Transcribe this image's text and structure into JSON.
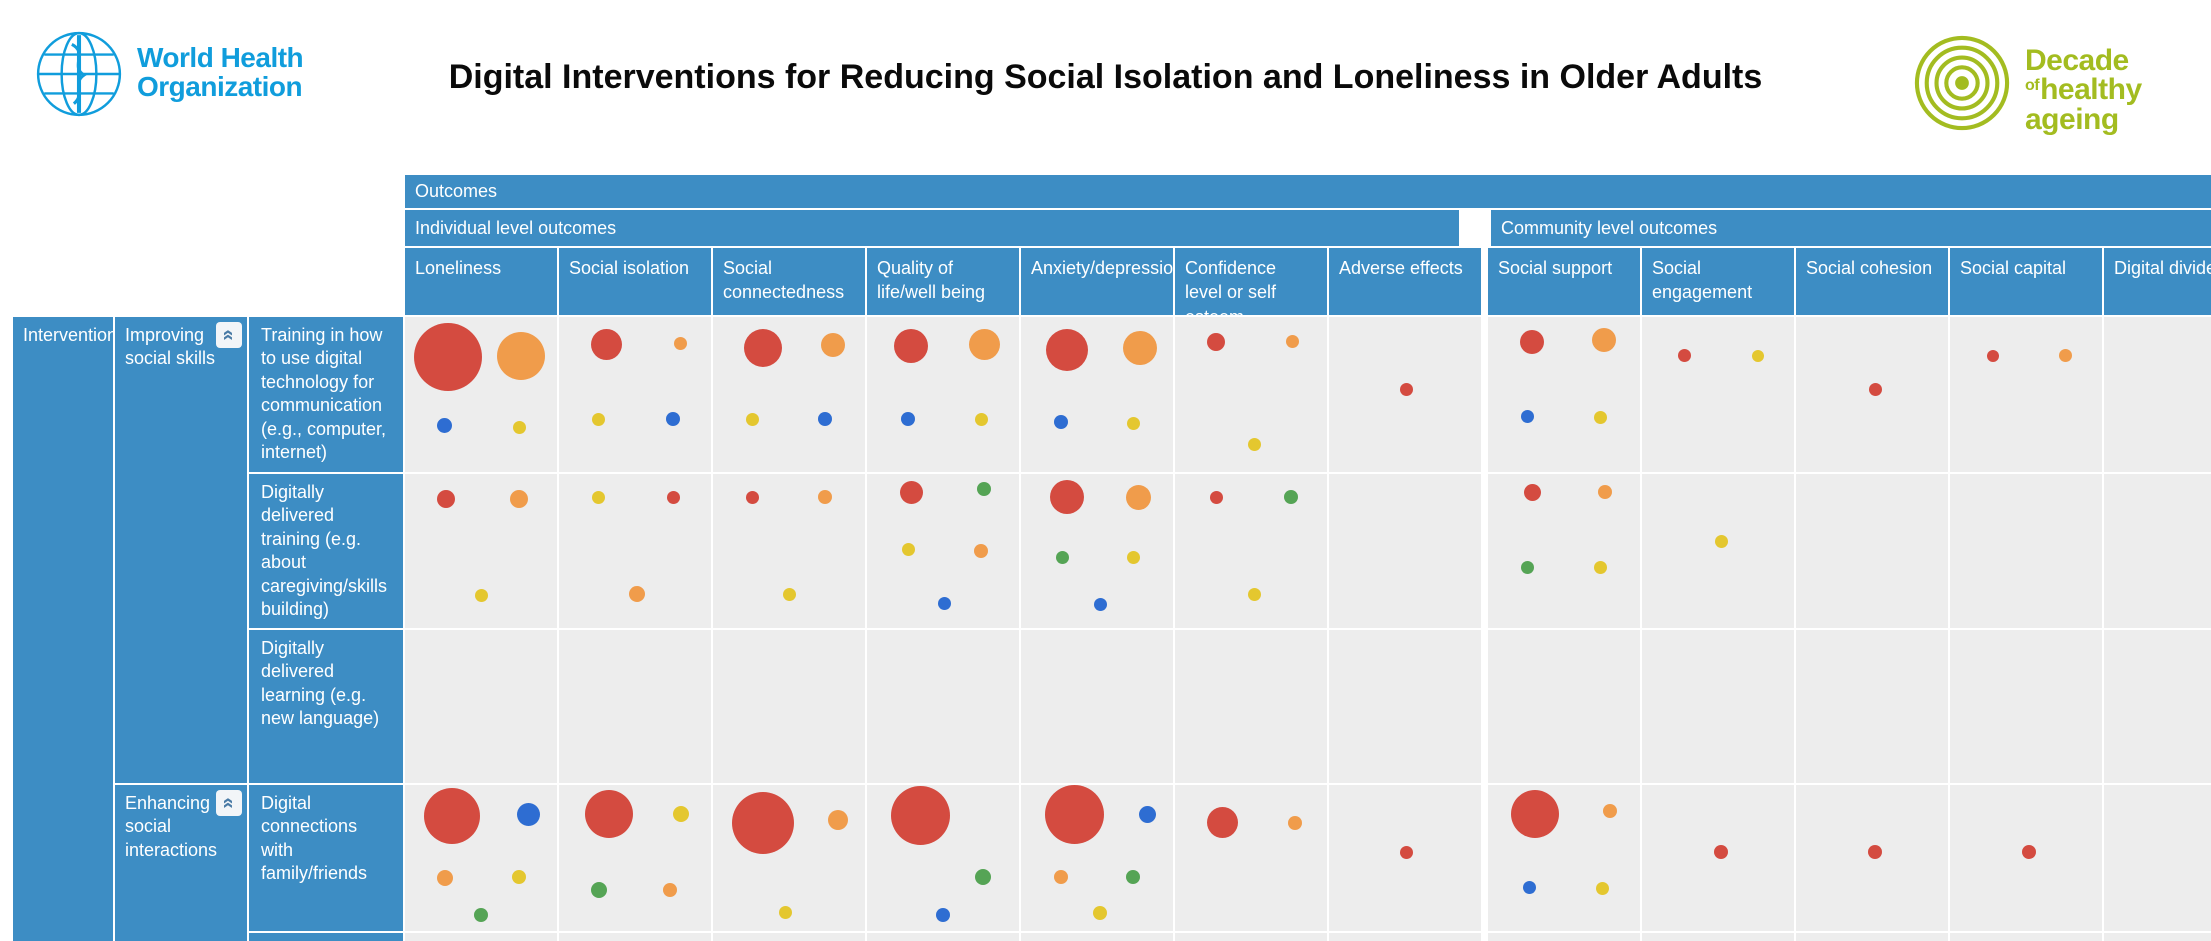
{
  "colors": {
    "header_blue": "#3d8dc4",
    "cell_bg": "#ededed",
    "page_bg": "#ffffff",
    "title_text": "#0a0a0a",
    "who_blue": "#109ddc",
    "decade_green": "#a3bc20",
    "bubble": {
      "red": "#d44b40",
      "orange": "#f09c4b",
      "yellow": "#e4c72f",
      "blue": "#2e6dd2",
      "green": "#55a455"
    }
  },
  "header": {
    "title": "Digital Interventions for Reducing Social Isolation and Loneliness in Older Adults",
    "who_logo": {
      "line1": "World Health",
      "line2": "Organization"
    },
    "decade_logo": {
      "word1": "Decade",
      "word2": "of",
      "word3": "healthy",
      "word4": "ageing"
    }
  },
  "matrix": {
    "outcomes_label": "Outcomes",
    "interventions_label": "Interventions",
    "collapse_columns_glyph": "«",
    "collapse_category_glyph": "«",
    "groups": [
      {
        "label": "Individual level outcomes",
        "columns": 7
      },
      {
        "label": "Community level outcomes",
        "columns": 5
      }
    ],
    "categories": [
      {
        "label": "Improving social skills"
      },
      {
        "label": "Enhancing social interactions"
      }
    ]
  },
  "chart_data": {
    "type": "bubble_matrix",
    "title": "Digital Interventions for Reducing Social Isolation and Loneliness in Older Adults",
    "row_axis_label": "Interventions",
    "column_axis_label": "Outcomes",
    "column_groups": [
      {
        "label": "Individual level outcomes",
        "columns": [
          "Loneliness",
          "Social isolation",
          "Social connectedness",
          "Quality of life/well being",
          "Anxiety/depression",
          "Confidence level or self esteem",
          "Adverse effects"
        ]
      },
      {
        "label": "Community level outcomes",
        "columns": [
          "Social support",
          "Social engagement",
          "Social cohesion",
          "Social capital",
          "Digital divide"
        ]
      }
    ],
    "columns": [
      "Loneliness",
      "Social isolation",
      "Social connectedness",
      "Quality of life/well being",
      "Anxiety/depression",
      "Confidence level or self esteem",
      "Adverse effects",
      "Social support",
      "Social engagement",
      "Social cohesion",
      "Social capital",
      "Digital divide"
    ],
    "bubble_format": "[color, diameter_px, center_x_pct, center_y_pct]",
    "rows": [
      {
        "label": "Training in how to use digital technology for communication (e.g., computer, internet)",
        "category": "Improving social skills",
        "cells": [
          [
            [
              "red",
              68,
              28,
              26
            ],
            [
              "orange",
              48,
              76,
              25
            ],
            [
              "blue",
              15,
              26,
              70
            ],
            [
              "yellow",
              13,
              75,
              71
            ]
          ],
          [
            [
              "red",
              31,
              31,
              18
            ],
            [
              "orange",
              13,
              80,
              17
            ],
            [
              "yellow",
              13,
              26,
              66
            ],
            [
              "blue",
              14,
              75,
              66
            ]
          ],
          [
            [
              "red",
              38,
              33,
              20
            ],
            [
              "orange",
              24,
              79,
              18
            ],
            [
              "yellow",
              13,
              26,
              66
            ],
            [
              "blue",
              14,
              74,
              66
            ]
          ],
          [
            [
              "red",
              34,
              29,
              19
            ],
            [
              "orange",
              31,
              77,
              18
            ],
            [
              "blue",
              14,
              27,
              66
            ],
            [
              "yellow",
              13,
              75,
              66
            ]
          ],
          [
            [
              "red",
              42,
              30,
              21
            ],
            [
              "orange",
              34,
              78,
              20
            ],
            [
              "blue",
              14,
              26,
              68
            ],
            [
              "yellow",
              13,
              74,
              69
            ]
          ],
          [
            [
              "red",
              18,
              27,
              16
            ],
            [
              "orange",
              13,
              77,
              16
            ],
            [
              "yellow",
              13,
              52,
              82
            ]
          ],
          [
            [
              "red",
              13,
              51,
              47
            ]
          ],
          [
            [
              "red",
              24,
              29,
              16
            ],
            [
              "orange",
              24,
              76,
              15
            ],
            [
              "blue",
              13,
              26,
              64
            ],
            [
              "yellow",
              13,
              74,
              65
            ]
          ],
          [
            [
              "red",
              13,
              28,
              25
            ],
            [
              "yellow",
              12,
              76,
              25
            ]
          ],
          [
            [
              "red",
              13,
              52,
              47
            ]
          ],
          [
            [
              "red",
              12,
              28,
              25
            ],
            [
              "orange",
              13,
              76,
              25
            ]
          ],
          []
        ]
      },
      {
        "label": "Digitally delivered training (e.g. about caregiving/skills building)",
        "category": "Improving social skills",
        "cells": [
          [
            [
              "red",
              18,
              27,
              16
            ],
            [
              "orange",
              18,
              75,
              16
            ],
            [
              "yellow",
              13,
              50,
              79
            ]
          ],
          [
            [
              "yellow",
              13,
              26,
              15
            ],
            [
              "red",
              13,
              75,
              15
            ],
            [
              "orange",
              16,
              51,
              78
            ]
          ],
          [
            [
              "red",
              13,
              26,
              15
            ],
            [
              "orange",
              14,
              74,
              15
            ],
            [
              "yellow",
              13,
              50,
              78
            ]
          ],
          [
            [
              "red",
              23,
              29,
              12
            ],
            [
              "green",
              14,
              77,
              10
            ],
            [
              "yellow",
              13,
              27,
              49
            ],
            [
              "orange",
              14,
              75,
              50
            ],
            [
              "blue",
              13,
              51,
              84
            ]
          ],
          [
            [
              "red",
              34,
              30,
              15
            ],
            [
              "orange",
              25,
              77,
              15
            ],
            [
              "green",
              13,
              27,
              54
            ],
            [
              "yellow",
              13,
              74,
              54
            ],
            [
              "blue",
              13,
              52,
              85
            ]
          ],
          [
            [
              "red",
              13,
              27,
              15
            ],
            [
              "green",
              14,
              76,
              15
            ],
            [
              "yellow",
              13,
              52,
              78
            ]
          ],
          [],
          [
            [
              "red",
              17,
              29,
              12
            ],
            [
              "orange",
              14,
              77,
              12
            ],
            [
              "green",
              13,
              26,
              61
            ],
            [
              "yellow",
              13,
              74,
              61
            ]
          ],
          [
            [
              "yellow",
              13,
              52,
              44
            ]
          ],
          [],
          [],
          []
        ]
      },
      {
        "label": "Digitally delivered learning (e.g. new language)",
        "category": "Improving social skills",
        "cells": [
          [],
          [],
          [],
          [],
          [],
          [],
          [],
          [],
          [],
          [],
          [],
          []
        ]
      },
      {
        "label": "Digital connections with family/friends",
        "category": "Enhancing social interactions",
        "cells": [
          [
            [
              "red",
              56,
              31,
              21
            ],
            [
              "blue",
              23,
              81,
              20
            ],
            [
              "orange",
              16,
              26,
              64
            ],
            [
              "yellow",
              14,
              75,
              63
            ],
            [
              "green",
              14,
              50,
              89
            ]
          ],
          [
            [
              "red",
              48,
              33,
              20
            ],
            [
              "yellow",
              16,
              80,
              20
            ],
            [
              "green",
              16,
              26,
              72
            ],
            [
              "orange",
              14,
              73,
              72
            ]
          ],
          [
            [
              "red",
              62,
              33,
              26
            ],
            [
              "orange",
              20,
              82,
              24
            ],
            [
              "yellow",
              13,
              48,
              87
            ]
          ],
          [
            [
              "red",
              59,
              35,
              21
            ],
            [
              "green",
              16,
              76,
              63
            ],
            [
              "blue",
              14,
              50,
              89
            ]
          ],
          [
            [
              "red",
              59,
              35,
              20
            ],
            [
              "blue",
              17,
              83,
              20
            ],
            [
              "orange",
              14,
              26,
              63
            ],
            [
              "green",
              14,
              74,
              63
            ],
            [
              "yellow",
              14,
              52,
              88
            ]
          ],
          [
            [
              "red",
              31,
              31,
              26
            ],
            [
              "orange",
              14,
              79,
              26
            ]
          ],
          [
            [
              "red",
              13,
              51,
              46
            ]
          ],
          [
            [
              "red",
              48,
              31,
              20
            ],
            [
              "orange",
              14,
              80,
              18
            ],
            [
              "blue",
              13,
              27,
              70
            ],
            [
              "yellow",
              13,
              75,
              71
            ]
          ],
          [
            [
              "red",
              14,
              52,
              46
            ]
          ],
          [
            [
              "red",
              14,
              52,
              46
            ]
          ],
          [
            [
              "red",
              14,
              52,
              46
            ]
          ],
          []
        ]
      },
      {
        "label": "",
        "category": "Enhancing social interactions",
        "cells": [
          [],
          [],
          [],
          [],
          [],
          [],
          [],
          [],
          [],
          [],
          [],
          []
        ]
      }
    ]
  }
}
